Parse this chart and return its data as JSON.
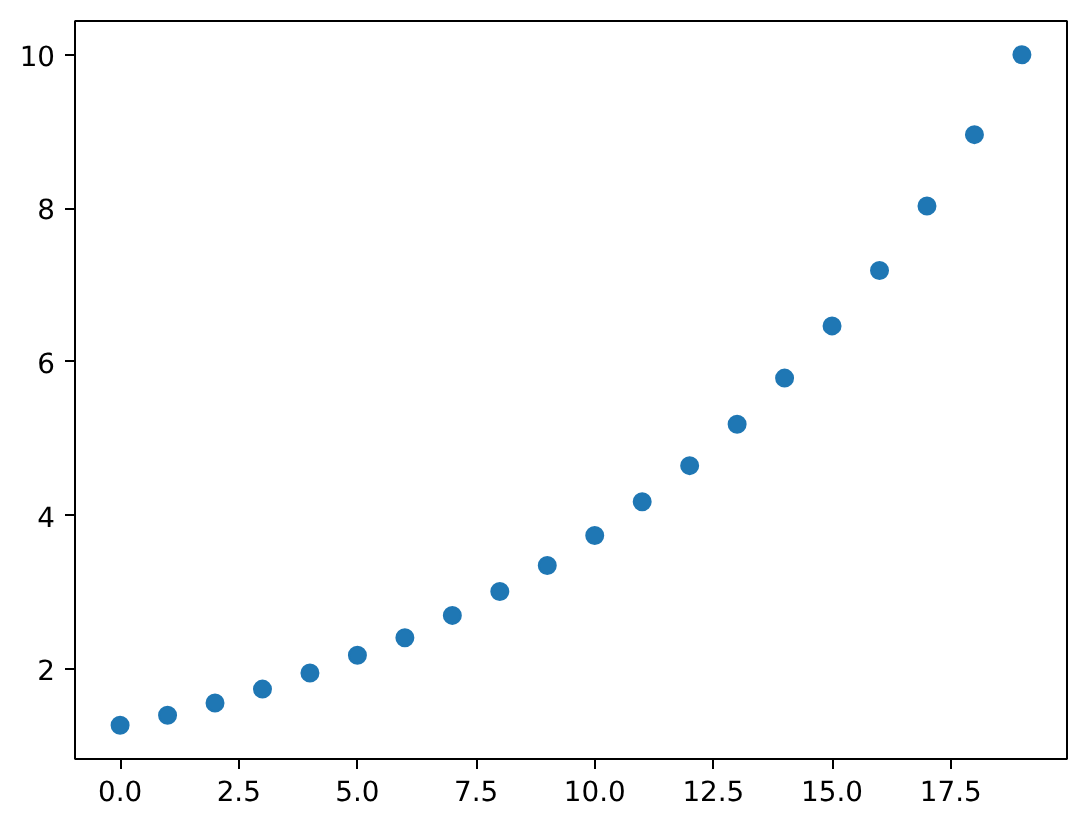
{
  "chart_data": {
    "type": "scatter",
    "marker": "circle",
    "color": "#1f77b4",
    "x": [
      0,
      1,
      2,
      3,
      4,
      5,
      6,
      7,
      8,
      9,
      10,
      11,
      12,
      13,
      14,
      15,
      16,
      17,
      18,
      19
    ],
    "values": [
      1.27,
      1.4,
      1.56,
      1.74,
      1.95,
      2.18,
      2.41,
      2.7,
      3.01,
      3.35,
      3.74,
      4.18,
      4.65,
      5.19,
      5.79,
      6.47,
      7.19,
      8.03,
      8.96,
      10.0
    ],
    "xlim": [
      -0.95,
      19.95
    ],
    "ylim": [
      0.83,
      10.44
    ],
    "xticks": [
      {
        "value": 0,
        "label": "0.0"
      },
      2.5,
      {
        "value": 5,
        "label": "5.0"
      },
      7.5,
      {
        "value": 10,
        "label": "10.0"
      },
      12.5,
      {
        "value": 15,
        "label": "15.0"
      },
      17.5
    ],
    "yticks": [
      2,
      4,
      6,
      8,
      10
    ]
  }
}
